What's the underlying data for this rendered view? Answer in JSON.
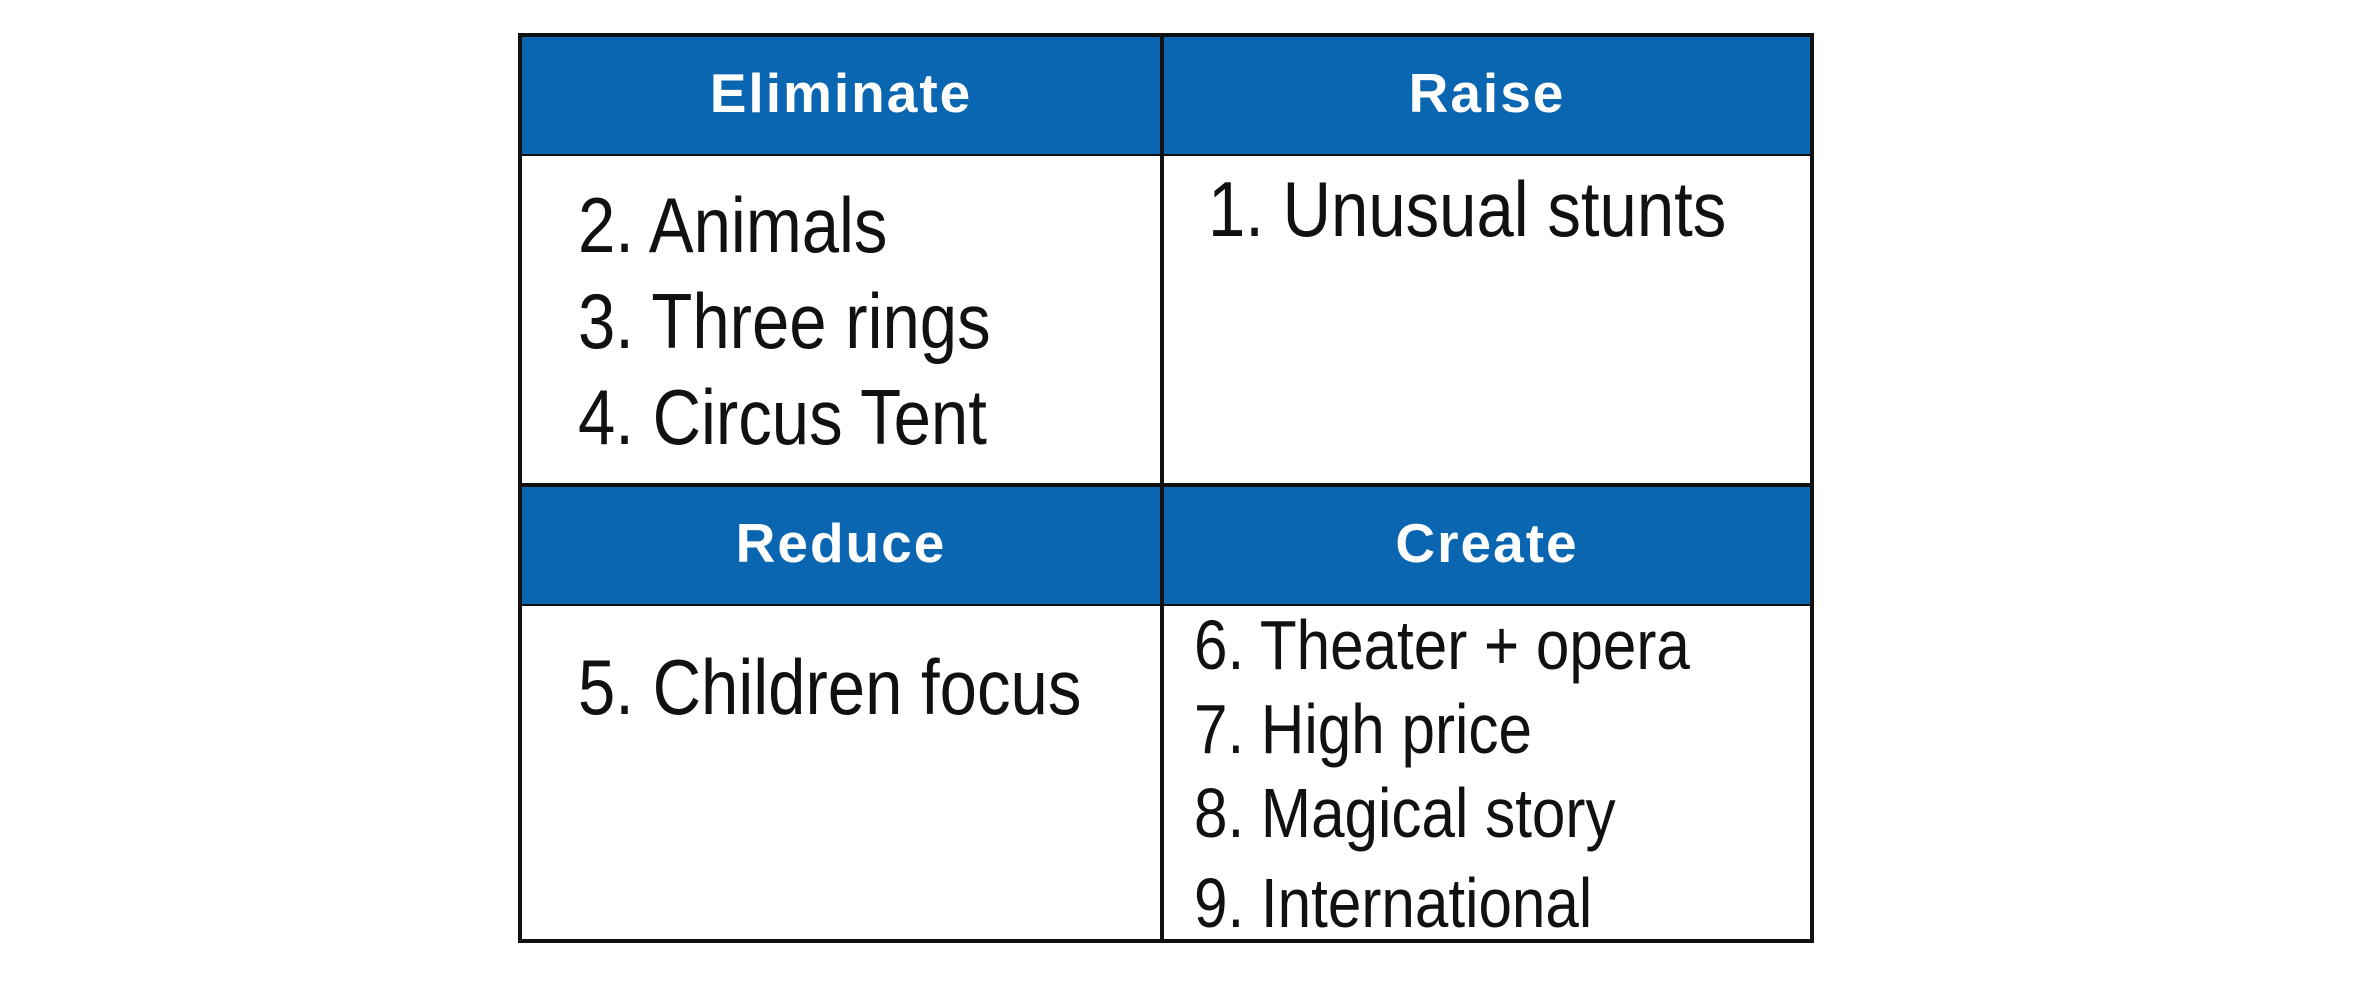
{
  "quadrants": {
    "eliminate": {
      "title": "Eliminate",
      "items": [
        "2.  Animals",
        "3.  Three rings",
        "4.  Circus Tent"
      ]
    },
    "raise": {
      "title": "Raise",
      "items": [
        "1. Unusual stunts"
      ]
    },
    "reduce": {
      "title": "Reduce",
      "items": [
        "5. Children focus"
      ]
    },
    "create": {
      "title": "Create",
      "items": [
        "6. Theater + opera",
        "7.  High price",
        "8.  Magical story",
        "9.  International"
      ]
    }
  },
  "colors": {
    "header_bg": "#0b66b1",
    "header_text": "#ffffff",
    "border": "#111111"
  }
}
